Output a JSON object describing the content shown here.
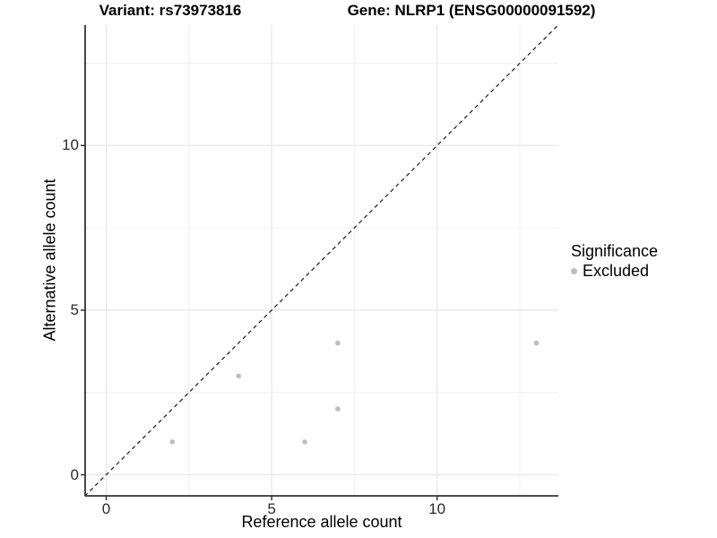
{
  "chart_data": {
    "type": "scatter",
    "title_left": "Variant: rs73973816",
    "title_right": "Gene: NLRP1 (ENSG00000091592)",
    "xlabel": "Reference allele count",
    "ylabel": "Alternative allele count",
    "xlim": [
      -0.65,
      13.65
    ],
    "ylim": [
      -0.65,
      13.65
    ],
    "x_major_ticks": [
      0,
      5,
      10
    ],
    "y_major_ticks": [
      0,
      5,
      10
    ],
    "x_minor_ticks": [
      2.5,
      7.5,
      12.5
    ],
    "y_minor_ticks": [
      2.5,
      7.5,
      12.5
    ],
    "grid": true,
    "identity_line": {
      "style": "dashed",
      "x1": -0.65,
      "y1": -0.65,
      "x2": 13.65,
      "y2": 13.65
    },
    "series": [
      {
        "name": "Excluded",
        "color": "#bebebe",
        "points": [
          [
            2,
            1
          ],
          [
            4,
            3
          ],
          [
            6,
            1
          ],
          [
            7,
            2
          ],
          [
            7,
            4
          ],
          [
            13,
            4
          ]
        ]
      }
    ],
    "legend": {
      "position": "right",
      "title": "Significance",
      "items": [
        {
          "label": "Excluded",
          "color": "#bebebe"
        }
      ]
    }
  },
  "colors": {
    "background": "#ffffff",
    "grid_major": "#e6e6e6",
    "grid_minor": "#f0f0f0",
    "axis_line": "#333333",
    "tick_mark": "#333333",
    "tick_text": "#2b2b2b",
    "dashed_line": "#1a1a1a",
    "point": "#bebebe"
  }
}
